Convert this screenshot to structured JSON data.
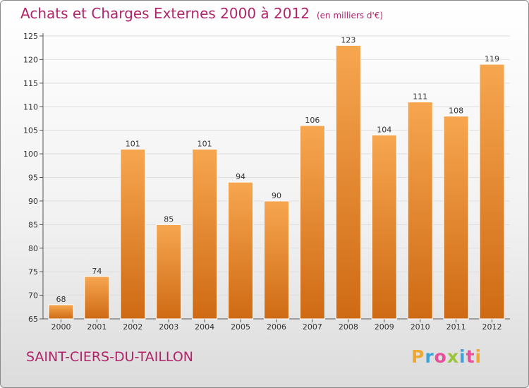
{
  "title": "Achats et Charges Externes 2000 à 2012",
  "unit_note": "(en milliers d'€)",
  "city": "SAINT-CIERS-DU-TAILLON",
  "logo": {
    "letters": [
      "P",
      "r",
      "o",
      "x",
      "i",
      "t",
      "i"
    ],
    "colors": [
      "#f0a830",
      "#3ba3d8",
      "#e84f9a",
      "#9bc43a",
      "#3ba3d8",
      "#e84f9a",
      "#f0a830"
    ]
  },
  "colors": {
    "bar_top": "#f7a650",
    "bar_bottom": "#cf6a14",
    "title": "#b0256a",
    "grid": "#dedede"
  },
  "chart_data": {
    "type": "bar",
    "categories": [
      "2000",
      "2001",
      "2002",
      "2003",
      "2004",
      "2005",
      "2006",
      "2007",
      "2008",
      "2009",
      "2010",
      "2011",
      "2012"
    ],
    "values": [
      68,
      74,
      101,
      85,
      101,
      94,
      90,
      106,
      123,
      104,
      111,
      108,
      119
    ],
    "yticks": [
      65,
      70,
      75,
      80,
      85,
      90,
      95,
      100,
      105,
      110,
      115,
      120,
      125
    ],
    "ylim": [
      65,
      125
    ],
    "grid": true
  }
}
